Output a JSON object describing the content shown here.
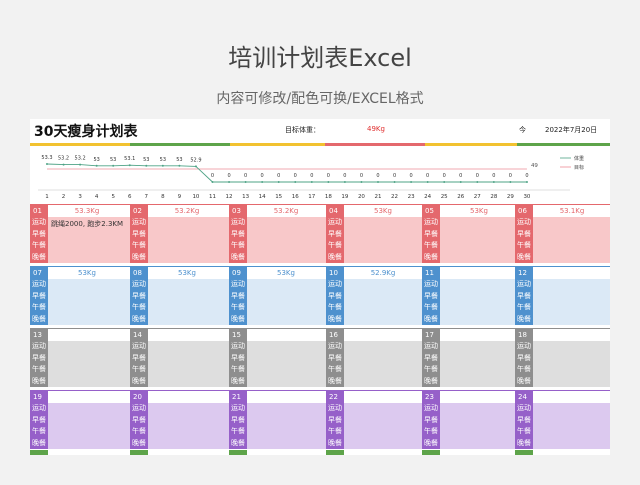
{
  "header": {
    "title": "培训计划表Excel",
    "subtitle": "内容可修改/配色可换/EXCEL格式"
  },
  "sheet": {
    "title": "30天瘦身计划表",
    "target_label": "目标体重：",
    "target_value": "49Kg",
    "today_label": "今",
    "today_value": "2022年7月20日"
  },
  "chart_data": {
    "type": "line",
    "x": [
      1,
      2,
      3,
      4,
      5,
      6,
      7,
      8,
      9,
      10,
      11,
      12,
      13,
      14,
      15,
      16,
      17,
      18,
      19,
      20,
      21,
      22,
      23,
      24,
      25,
      26,
      27,
      28,
      29,
      30
    ],
    "series": [
      {
        "name": "体重",
        "values": [
          53.3,
          53.2,
          53.2,
          53,
          53,
          53.1,
          53,
          53,
          53,
          52.9,
          0,
          0,
          0,
          0,
          0,
          0,
          0,
          0,
          0,
          0,
          0,
          0,
          0,
          0,
          0,
          0,
          0,
          0,
          0,
          0
        ],
        "labels": [
          "53.3",
          "53.2",
          "53.2",
          "53",
          "53",
          "53.1",
          "53",
          "53",
          "53",
          "52.9",
          "0",
          "0",
          "0",
          "0",
          "0",
          "0",
          "0",
          "0",
          "0",
          "0",
          "0",
          "0",
          "0",
          "0",
          "0",
          "0",
          "0",
          "0",
          "0",
          "0"
        ]
      },
      {
        "name": "目标",
        "values": [
          49,
          49,
          49,
          49,
          49,
          49,
          49,
          49,
          49,
          49,
          49,
          49,
          49,
          49,
          49,
          49,
          49,
          49,
          49,
          49,
          49,
          49,
          49,
          49,
          49,
          49,
          49,
          49,
          49,
          49
        ],
        "end_label": "49"
      }
    ],
    "x_tick_labels": [
      "1",
      "2",
      "3",
      "4",
      "5",
      "6",
      "7",
      "8",
      "9",
      "10",
      "11",
      "12",
      "13",
      "14",
      "15",
      "16",
      "17",
      "18",
      "19",
      "20",
      "21",
      "22",
      "23",
      "24",
      "25",
      "26",
      "27",
      "28",
      "29",
      "30"
    ],
    "legend_position": "right",
    "grid": false,
    "colors": {
      "weight": "#4ea386",
      "target": "#ee8d97"
    }
  },
  "row_labels": [
    "运动",
    "早餐",
    "午餐",
    "晚餐"
  ],
  "weeks": [
    {
      "color": "#e4686d",
      "band": "#f8c8c9",
      "days": [
        {
          "day": "01",
          "weight": "53.3Kg",
          "note": "跳绳2000, 跑步2.3KM"
        },
        {
          "day": "02",
          "weight": "53.2Kg",
          "note": ""
        },
        {
          "day": "03",
          "weight": "53.2Kg",
          "note": ""
        },
        {
          "day": "04",
          "weight": "53Kg",
          "note": ""
        },
        {
          "day": "05",
          "weight": "53Kg",
          "note": ""
        },
        {
          "day": "06",
          "weight": "53.1Kg",
          "note": ""
        }
      ]
    },
    {
      "color": "#4e91ce",
      "band": "#dbe9f6",
      "days": [
        {
          "day": "07",
          "weight": "53Kg",
          "note": ""
        },
        {
          "day": "08",
          "weight": "53Kg",
          "note": ""
        },
        {
          "day": "09",
          "weight": "53Kg",
          "note": ""
        },
        {
          "day": "10",
          "weight": "52.9Kg",
          "note": ""
        },
        {
          "day": "11",
          "weight": "",
          "note": ""
        },
        {
          "day": "12",
          "weight": "",
          "note": ""
        }
      ]
    },
    {
      "color": "#8e8e8e",
      "band": "#dedede",
      "days": [
        {
          "day": "13",
          "weight": "",
          "note": ""
        },
        {
          "day": "14",
          "weight": "",
          "note": ""
        },
        {
          "day": "15",
          "weight": "",
          "note": ""
        },
        {
          "day": "16",
          "weight": "",
          "note": ""
        },
        {
          "day": "17",
          "weight": "",
          "note": ""
        },
        {
          "day": "18",
          "weight": "",
          "note": ""
        }
      ]
    },
    {
      "color": "#9660c9",
      "band": "#dcc9ef",
      "days": [
        {
          "day": "19",
          "weight": "",
          "note": ""
        },
        {
          "day": "20",
          "weight": "",
          "note": ""
        },
        {
          "day": "21",
          "weight": "",
          "note": ""
        },
        {
          "day": "22",
          "weight": "",
          "note": ""
        },
        {
          "day": "23",
          "weight": "",
          "note": ""
        },
        {
          "day": "24",
          "weight": "",
          "note": ""
        }
      ]
    }
  ]
}
